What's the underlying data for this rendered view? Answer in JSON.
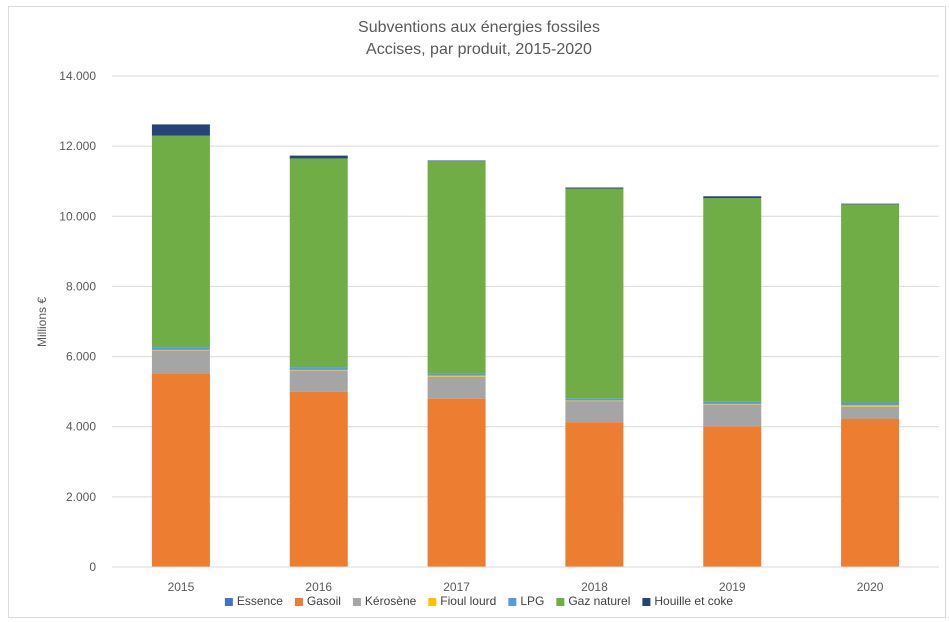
{
  "chart_data": {
    "type": "bar",
    "stacked": true,
    "title": "Subventions aux énergies fossiles",
    "subtitle": "Accises, par produit, 2015-2020",
    "xlabel": "",
    "ylabel": "Millions €",
    "ylim": [
      0,
      14000
    ],
    "yticks": [
      0,
      2000,
      4000,
      6000,
      8000,
      10000,
      12000,
      14000
    ],
    "ytick_labels": [
      "0",
      "2.000",
      "4.000",
      "6.000",
      "8.000",
      "10.000",
      "12.000",
      "14.000"
    ],
    "grid": true,
    "legend_position": "bottom",
    "categories": [
      "2015",
      "2016",
      "2017",
      "2018",
      "2019",
      "2020"
    ],
    "series": [
      {
        "name": "Essence",
        "color": "#4472c4",
        "values": [
          0,
          0,
          0,
          0,
          0,
          0
        ]
      },
      {
        "name": "Gasoil",
        "color": "#ed7d31",
        "values": [
          5520,
          5000,
          4800,
          4130,
          4010,
          4220
        ]
      },
      {
        "name": "Kérosène",
        "color": "#a5a5a5",
        "values": [
          650,
          600,
          620,
          600,
          620,
          350
        ]
      },
      {
        "name": "Fioul  lourd",
        "color": "#ffc000",
        "values": [
          20,
          20,
          40,
          20,
          20,
          40
        ]
      },
      {
        "name": "LPG",
        "color": "#5b9bd5",
        "values": [
          80,
          80,
          60,
          60,
          60,
          80
        ]
      },
      {
        "name": "Gaz naturel",
        "color": "#70ad47",
        "values": [
          6030,
          5950,
          6050,
          5980,
          5810,
          5650
        ]
      },
      {
        "name": "Houille et coke",
        "color": "#264478",
        "values": [
          320,
          80,
          20,
          30,
          50,
          20
        ]
      }
    ]
  }
}
